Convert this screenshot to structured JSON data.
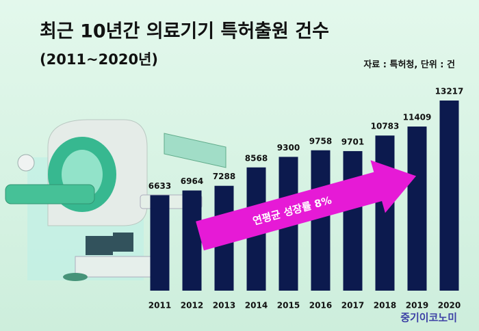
{
  "chart_data": {
    "type": "bar",
    "title": "최근 10년간 의료기기 특허출원 건수",
    "subtitle": "(2011~2020년)",
    "source": "자료 : 특허청, 단위 : 건",
    "annotation": "연평균 성장률 8%",
    "credit": "중기이코노미",
    "categories": [
      "2011",
      "2012",
      "2013",
      "2014",
      "2015",
      "2016",
      "2017",
      "2018",
      "2019",
      "2020"
    ],
    "values": [
      6633,
      6964,
      7288,
      8568,
      9300,
      9758,
      9701,
      10783,
      11409,
      13217
    ],
    "color": "#0c1a4e"
  }
}
